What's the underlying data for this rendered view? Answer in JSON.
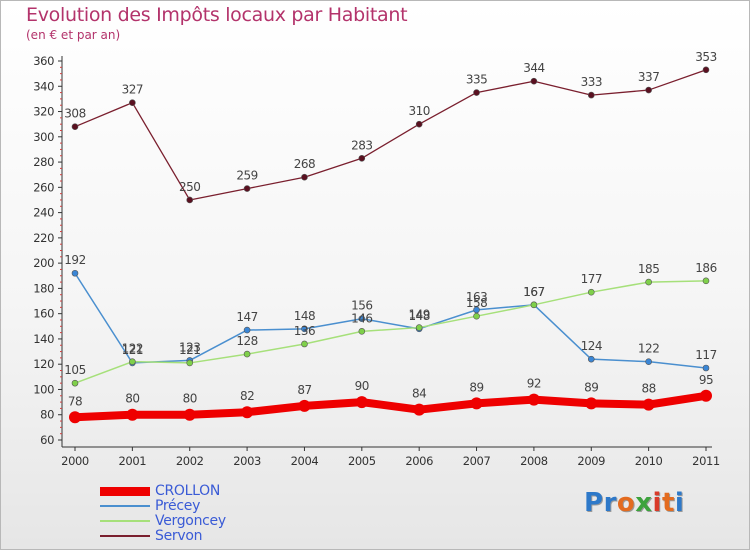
{
  "title": "Evolution des Impôts locaux par Habitant",
  "subtitle": "(en € et par an)",
  "logo": {
    "text": "Proxiti",
    "letter_colors": [
      "#2e79c9",
      "#2e79c9",
      "#e36b1f",
      "#3da33d",
      "#d93a2a",
      "#e36b1f",
      "#2e79c9"
    ]
  },
  "chart_data": {
    "type": "line",
    "title": "Evolution des Impôts locaux par Habitant",
    "subtitle": "(en € et par an)",
    "xlabel": "",
    "ylabel": "",
    "x": [
      "2000",
      "2001",
      "2002",
      "2003",
      "2004",
      "2005",
      "2006",
      "2007",
      "2008",
      "2009",
      "2010",
      "2011"
    ],
    "ylim": [
      60,
      360
    ],
    "yticks": [
      "60",
      "80",
      "100",
      "120",
      "140",
      "160",
      "180",
      "200",
      "220",
      "240",
      "260",
      "280",
      "300",
      "320",
      "340",
      "360"
    ],
    "grid": false,
    "legend_position": "bottom-left",
    "series": [
      {
        "name": "CROLLON",
        "color": "#ee0000",
        "values": [
          78,
          80,
          80,
          82,
          87,
          90,
          84,
          89,
          92,
          89,
          88,
          95
        ]
      },
      {
        "name": "Précey",
        "color": "#4a8fcf",
        "values": [
          192,
          121,
          123,
          147,
          148,
          156,
          148,
          163,
          167,
          124,
          122,
          117
        ]
      },
      {
        "name": "Vergoncey",
        "color": "#a6e07a",
        "values": [
          105,
          122,
          121,
          128,
          136,
          146,
          149,
          158,
          167,
          177,
          185,
          186
        ]
      },
      {
        "name": "Servon",
        "color": "#7a1f2e",
        "values": [
          308,
          327,
          250,
          259,
          268,
          283,
          310,
          335,
          344,
          333,
          337,
          353
        ]
      }
    ],
    "data_labels": [
      {
        "series": "CROLLON",
        "labels": [
          "78",
          "80",
          "80",
          "82",
          "87",
          "90",
          "84",
          "89",
          "92",
          "89",
          "88",
          "95"
        ]
      },
      {
        "series": "Précey",
        "labels": [
          "192",
          "121",
          "123",
          "147",
          "148",
          "156",
          "148",
          "163",
          "167",
          "124",
          "122",
          "117"
        ]
      },
      {
        "series": "Vergoncey",
        "labels": [
          "105",
          "122",
          "121",
          "128",
          "136",
          "146",
          "149",
          "158",
          "167",
          "177",
          "185",
          "186"
        ]
      },
      {
        "series": "Servon",
        "labels": [
          "308",
          "327",
          "250",
          "259",
          "268",
          "283",
          "310",
          "335",
          "344",
          "333",
          "337",
          "353"
        ]
      }
    ]
  }
}
